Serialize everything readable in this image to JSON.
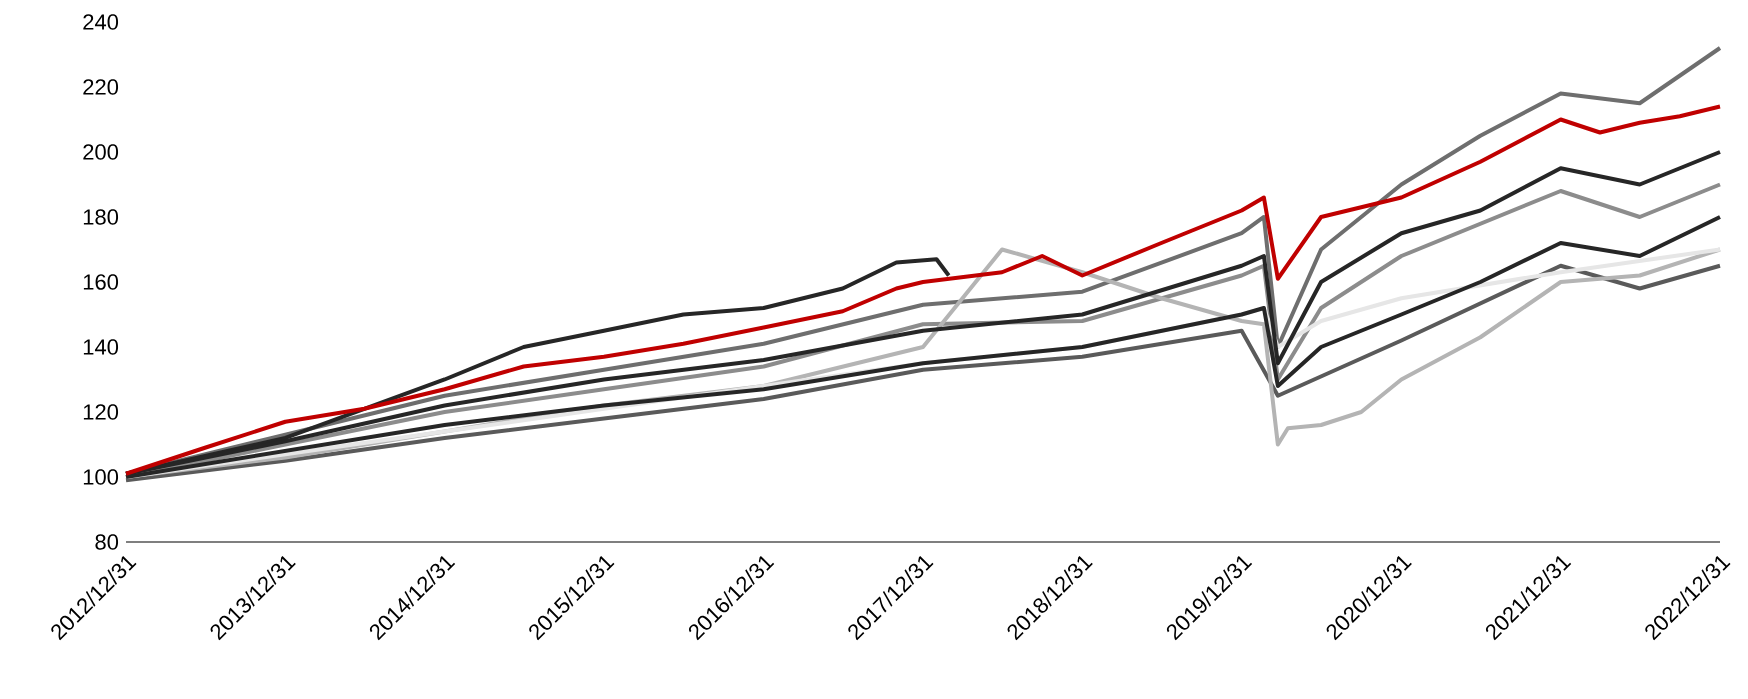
{
  "chart_data": {
    "type": "line",
    "xlim": [
      "2012-12-31",
      "2022-12-31"
    ],
    "xticks": [
      {
        "value": "2012-12-31",
        "label": "2012/12/31"
      },
      {
        "value": "2013-12-31",
        "label": "2013/12/31"
      },
      {
        "value": "2014-12-31",
        "label": "2014/12/31"
      },
      {
        "value": "2015-12-31",
        "label": "2015/12/31"
      },
      {
        "value": "2016-12-31",
        "label": "2016/12/31"
      },
      {
        "value": "2017-12-31",
        "label": "2017/12/31"
      },
      {
        "value": "2018-12-31",
        "label": "2018/12/31"
      },
      {
        "value": "2019-12-31",
        "label": "2019/12/31"
      },
      {
        "value": "2020-12-31",
        "label": "2020/12/31"
      },
      {
        "value": "2021-12-31",
        "label": "2021/12/31"
      },
      {
        "value": "2022-12-31",
        "label": "2022/12/31"
      }
    ],
    "ylim": [
      80,
      240
    ],
    "yticks": [
      80,
      100,
      120,
      140,
      160,
      180,
      200,
      220,
      240
    ],
    "series": [
      {
        "color": "#6e6e6e",
        "x": [
          "2012-12-31",
          "2013-12-31",
          "2014-12-31",
          "2015-12-31",
          "2016-12-31",
          "2017-12-31",
          "2018-12-31",
          "2019-12-31",
          "2020-02-20",
          "2020-03-23",
          "2020-06-30",
          "2020-12-31",
          "2021-06-30",
          "2021-12-31",
          "2022-06-30",
          "2022-12-31"
        ],
        "values": [
          101,
          113,
          125,
          133,
          141,
          153,
          157,
          175,
          180,
          140,
          170,
          190,
          205,
          218,
          215,
          232
        ]
      },
      {
        "color": "#8c8c8c",
        "x": [
          "2012-12-31",
          "2013-12-31",
          "2014-12-31",
          "2015-12-31",
          "2016-12-31",
          "2017-12-31",
          "2018-12-31",
          "2019-12-31",
          "2020-02-20",
          "2020-03-23",
          "2020-06-30",
          "2020-12-31",
          "2021-12-31",
          "2022-06-30",
          "2022-12-31"
        ],
        "values": [
          100,
          110,
          120,
          127,
          134,
          147,
          148,
          162,
          165,
          130,
          152,
          168,
          188,
          180,
          190
        ]
      },
      {
        "color": "#5a5a5a",
        "x": [
          "2012-12-31",
          "2013-12-31",
          "2014-12-31",
          "2015-12-31",
          "2016-12-31",
          "2017-12-31",
          "2018-12-31",
          "2019-12-31",
          "2020-03-23",
          "2020-12-31",
          "2021-12-31",
          "2022-06-30",
          "2022-12-31"
        ],
        "values": [
          99,
          105,
          112,
          118,
          124,
          133,
          137,
          145,
          125,
          142,
          165,
          158,
          165
        ]
      },
      {
        "color": "#b4b4b4",
        "x": [
          "2012-12-31",
          "2013-12-31",
          "2014-12-31",
          "2015-12-31",
          "2016-12-31",
          "2017-12-31",
          "2018-06-30",
          "2018-12-31",
          "2019-06-30",
          "2019-12-31",
          "2020-02-20",
          "2020-03-23",
          "2020-04-15",
          "2020-06-30",
          "2020-09-30",
          "2020-12-31",
          "2021-06-30",
          "2021-12-31",
          "2022-06-30",
          "2022-12-31"
        ],
        "values": [
          100,
          106,
          114,
          122,
          128,
          140,
          170,
          163,
          155,
          148,
          147,
          110,
          115,
          116,
          120,
          130,
          143,
          160,
          162,
          170
        ]
      },
      {
        "color": "#e6e6e6",
        "x": [
          "2012-12-31",
          "2013-12-31",
          "2014-12-31",
          "2015-12-31",
          "2016-12-31",
          "2017-12-31",
          "2018-12-31",
          "2019-12-31",
          "2020-02-20",
          "2020-03-23",
          "2020-06-30",
          "2020-12-31",
          "2021-12-31",
          "2022-12-31"
        ],
        "values": [
          100,
          107,
          114,
          121,
          128,
          135,
          140,
          150,
          152,
          140,
          148,
          155,
          163,
          170
        ]
      },
      {
        "color": "#262626",
        "x": [
          "2012-12-31",
          "2013-12-31",
          "2014-12-31",
          "2015-06-30",
          "2015-12-31",
          "2016-06-30",
          "2016-12-31",
          "2017-06-30",
          "2017-10-31",
          "2018-01-31",
          "2018-02-28"
        ],
        "values": [
          101,
          112,
          130,
          140,
          145,
          150,
          152,
          158,
          166,
          167,
          162
        ]
      },
      {
        "color": "#262626",
        "x": [
          "2012-12-31",
          "2013-12-31",
          "2014-12-31",
          "2015-12-31",
          "2016-12-31",
          "2017-12-31",
          "2018-12-31",
          "2019-12-31",
          "2020-02-20",
          "2020-03-23",
          "2020-06-30",
          "2020-12-31",
          "2021-06-30",
          "2021-12-31",
          "2022-06-30",
          "2022-12-31"
        ],
        "values": [
          101,
          111,
          122,
          130,
          136,
          145,
          150,
          165,
          168,
          135,
          160,
          175,
          182,
          195,
          190,
          200
        ]
      },
      {
        "color": "#262626",
        "x": [
          "2012-12-31",
          "2013-12-31",
          "2014-12-31",
          "2015-12-31",
          "2016-12-31",
          "2017-12-31",
          "2018-12-31",
          "2019-12-31",
          "2020-02-20",
          "2020-03-23",
          "2020-06-30",
          "2020-12-31",
          "2021-06-30",
          "2021-12-31",
          "2022-06-30",
          "2022-12-31"
        ],
        "values": [
          100,
          108,
          116,
          122,
          127,
          135,
          140,
          150,
          152,
          128,
          140,
          150,
          160,
          172,
          168,
          180
        ]
      },
      {
        "color": "#c00000",
        "x": [
          "2012-12-31",
          "2013-06-30",
          "2013-12-31",
          "2014-06-30",
          "2014-12-31",
          "2015-06-30",
          "2015-12-31",
          "2016-06-30",
          "2016-12-31",
          "2017-06-30",
          "2017-10-31",
          "2017-12-31",
          "2018-06-30",
          "2018-09-30",
          "2018-12-31",
          "2019-06-30",
          "2019-12-31",
          "2020-02-20",
          "2020-03-23",
          "2020-06-30",
          "2020-12-31",
          "2021-06-30",
          "2021-12-31",
          "2022-03-31",
          "2022-06-30",
          "2022-09-30",
          "2022-12-31"
        ],
        "values": [
          101,
          109,
          117,
          121,
          127,
          134,
          137,
          141,
          146,
          151,
          158,
          160,
          163,
          168,
          162,
          172,
          182,
          186,
          161,
          180,
          186,
          197,
          210,
          206,
          209,
          211,
          214
        ]
      }
    ]
  }
}
